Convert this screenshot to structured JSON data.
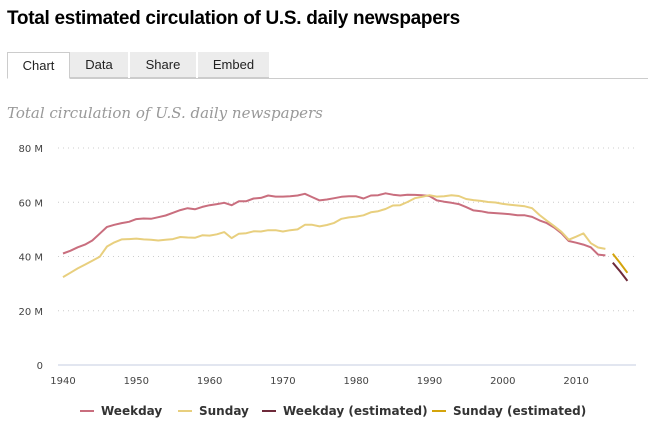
{
  "title": "Total estimated circulation of U.S. daily newspapers",
  "tabs": [
    {
      "label": "Chart",
      "active": true
    },
    {
      "label": "Data"
    },
    {
      "label": "Share"
    },
    {
      "label": "Embed"
    }
  ],
  "chart_data": {
    "type": "line",
    "title": "Total circulation of U.S. daily newspapers",
    "xlabel": "",
    "ylabel": "",
    "xlim": [
      1940,
      2018
    ],
    "ylim": [
      0,
      80
    ],
    "x_ticks": [
      1940,
      1950,
      1960,
      1970,
      1980,
      1990,
      2000,
      2010
    ],
    "y_ticks": [
      {
        "value": 0,
        "label": "0"
      },
      {
        "value": 20,
        "label": "20 M"
      },
      {
        "value": 40,
        "label": "40 M"
      },
      {
        "value": 60,
        "label": "60 M"
      },
      {
        "value": 80,
        "label": "80 M"
      }
    ],
    "grid": "horizontal dotted",
    "legend": "bottom",
    "series": [
      {
        "name": "Weekday",
        "color": "#c96e7e",
        "start_year": 1940,
        "values": [
          41.1,
          42.1,
          43.4,
          44.4,
          45.9,
          48.4,
          50.9,
          51.7,
          52.3,
          52.8,
          53.8,
          54.0,
          53.9,
          54.5,
          55.1,
          56.1,
          57.1,
          57.8,
          57.4,
          58.3,
          58.9,
          59.3,
          59.8,
          58.9,
          60.4,
          60.4,
          61.4,
          61.6,
          62.5,
          62.1,
          62.1,
          62.2,
          62.5,
          63.1,
          61.9,
          60.7,
          61.0,
          61.5,
          62.0,
          62.2,
          62.2,
          61.4,
          62.5,
          62.6,
          63.3,
          62.8,
          62.5,
          62.8,
          62.7,
          62.6,
          62.3,
          60.7,
          60.2,
          59.8,
          59.3,
          58.2,
          57.0,
          56.7,
          56.2,
          56.0,
          55.8,
          55.6,
          55.2,
          55.2,
          54.6,
          53.3,
          52.3,
          50.7,
          48.6,
          45.7,
          45.1,
          44.4,
          43.4,
          40.7,
          40.4
        ]
      },
      {
        "name": "Sunday",
        "color": "#e8cf7e",
        "start_year": 1940,
        "values": [
          32.4,
          34.0,
          35.6,
          37.0,
          38.4,
          39.9,
          43.7,
          45.2,
          46.3,
          46.4,
          46.6,
          46.3,
          46.2,
          45.9,
          46.2,
          46.4,
          47.2,
          47.0,
          46.9,
          47.8,
          47.7,
          48.2,
          49.0,
          46.8,
          48.4,
          48.6,
          49.3,
          49.2,
          49.7,
          49.7,
          49.2,
          49.7,
          50.0,
          51.7,
          51.7,
          51.1,
          51.6,
          52.4,
          53.9,
          54.4,
          54.7,
          55.2,
          56.3,
          56.7,
          57.5,
          58.8,
          58.9,
          60.1,
          61.5,
          62.0,
          62.6,
          62.1,
          62.2,
          62.6,
          62.3,
          61.2,
          60.8,
          60.5,
          60.1,
          59.9,
          59.4,
          59.1,
          58.8,
          58.5,
          57.8,
          55.3,
          53.2,
          51.2,
          49.1,
          46.2,
          47.3,
          48.5,
          44.9,
          43.3,
          42.8
        ]
      },
      {
        "name": "Weekday (estimated)",
        "color": "#6e2a3a",
        "start_year": 2015,
        "values": [
          37.7,
          34.5,
          31.0
        ]
      },
      {
        "name": "Sunday (estimated)",
        "color": "#d4a40c",
        "start_year": 2015,
        "values": [
          41.0,
          37.6,
          34.0
        ]
      }
    ]
  }
}
